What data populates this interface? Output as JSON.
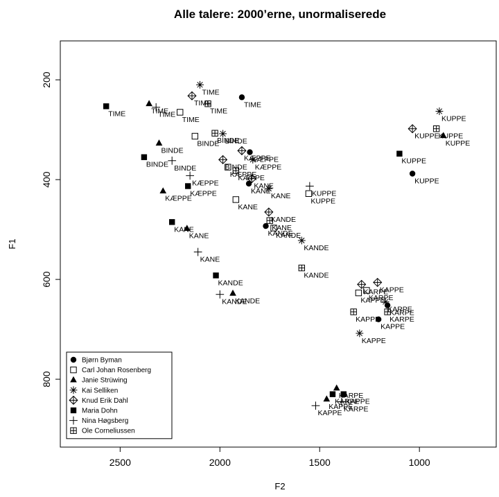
{
  "chart_data": {
    "type": "scatter",
    "title": "Alle talere: 2000’erne, unormaliserede",
    "x_label": "F2",
    "y_label": "F1",
    "xlim": [
      2800,
      615
    ],
    "ylim": [
      122,
      936
    ],
    "xticks": [
      2500,
      2000,
      1500,
      1000
    ],
    "yticks": [
      200,
      400,
      600,
      800
    ],
    "reverse_x": true,
    "reverse_y": true,
    "legend": "bottom-left",
    "color": "#000000",
    "categories": [
      "TIME",
      "BINDE",
      "KÆPPE",
      "KANE",
      "KANDE",
      "KUPPE",
      "KARPE",
      "KAPPE"
    ],
    "series": [
      {
        "name": "Bjørn Byman",
        "marker": "circle",
        "x": [
          1890,
          null,
          1850,
          1855,
          1770,
          1035,
          1160,
          1205
        ],
        "y": [
          235,
          null,
          345,
          408,
          493,
          388,
          652,
          680
        ]
      },
      {
        "name": "Carl Johan Rosenberg",
        "marker": "square-open",
        "x": [
          2200,
          2125,
          1960,
          1920,
          1730,
          1555,
          1265,
          1305
        ],
        "y": [
          265,
          313,
          375,
          440,
          497,
          428,
          622,
          627
        ]
      },
      {
        "name": "Janie Strüwing",
        "marker": "triangle",
        "x": [
          2355,
          2305,
          2285,
          2165,
          1935,
          880,
          1415,
          1465
        ],
        "y": [
          248,
          327,
          423,
          498,
          628,
          312,
          818,
          840
        ]
      },
      {
        "name": "Kai Selliken",
        "marker": "asterisk",
        "x": [
          2100,
          1985,
          1835,
          1755,
          1590,
          900,
          1170,
          1300
        ],
        "y": [
          210,
          308,
          360,
          418,
          522,
          263,
          645,
          708
        ]
      },
      {
        "name": "Knud Erik Dahl",
        "marker": "diamond-plus",
        "x": [
          2140,
          1985,
          1890,
          1840,
          1755,
          1035,
          1290,
          1210
        ],
        "y": [
          232,
          360,
          342,
          398,
          465,
          298,
          610,
          606
        ]
      },
      {
        "name": "Maria Dohn",
        "marker": "square",
        "x": [
          2570,
          2380,
          2160,
          2240,
          2020,
          1100,
          1435,
          1380
        ],
        "y": [
          253,
          355,
          413,
          485,
          592,
          348,
          830,
          830
        ]
      },
      {
        "name": "Nina Høgsberg",
        "marker": "plus",
        "x": [
          2320,
          2240,
          2150,
          2110,
          2000,
          1550,
          1390,
          1520
        ],
        "y": [
          255,
          362,
          392,
          545,
          630,
          413,
          845,
          853
        ]
      },
      {
        "name": "Ole Corneliussen",
        "marker": "square-plus",
        "x": [
          2060,
          2025,
          1920,
          1750,
          1590,
          915,
          1160,
          1330
        ],
        "y": [
          248,
          307,
          382,
          482,
          577,
          298,
          665,
          665
        ]
      }
    ]
  }
}
